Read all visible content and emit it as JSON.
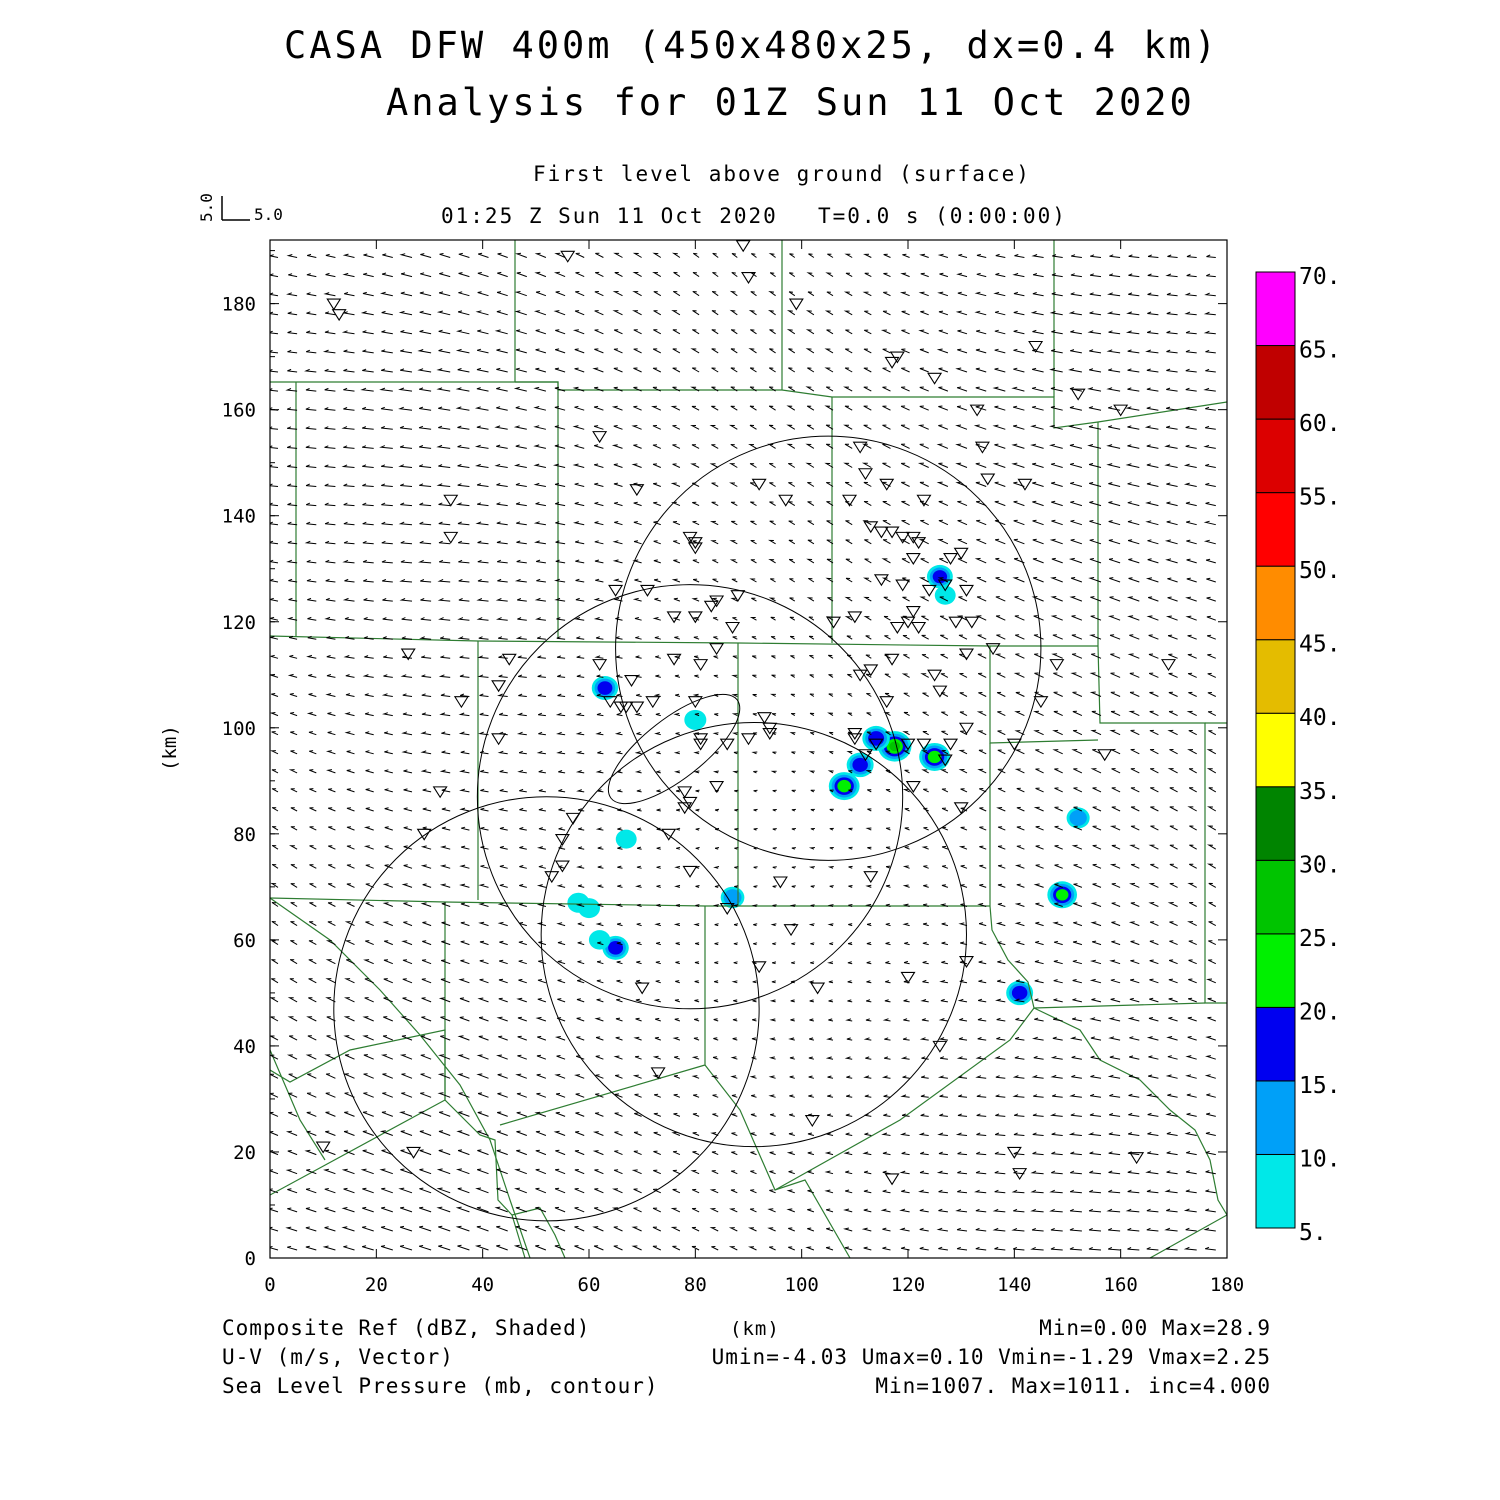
{
  "header": {
    "title_line1": "CASA DFW 400m (450x480x25, dx=0.4 km)",
    "title_line2": "Analysis for 01Z Sun 11 Oct 2020",
    "level": "First level above ground (surface)",
    "valid_time": "01:25 Z Sun 11 Oct 2020",
    "elapsed": "T=0.0 s (0:00:00)",
    "vector_ref_v": "5.0",
    "vector_ref_u": "5.0"
  },
  "axes": {
    "x_label": "(km)",
    "y_label": "(km)",
    "x_ticks": [
      "0",
      "20",
      "40",
      "60",
      "80",
      "100",
      "120",
      "140",
      "160",
      "180"
    ],
    "y_ticks": [
      "0",
      "20",
      "40",
      "60",
      "80",
      "100",
      "120",
      "140",
      "160",
      "180"
    ],
    "x_range": [
      0,
      180
    ],
    "y_range": [
      0,
      192
    ]
  },
  "colorbar": {
    "labels": [
      "5.",
      "10.",
      "15.",
      "20.",
      "25.",
      "30.",
      "35.",
      "40.",
      "45.",
      "50.",
      "55.",
      "60.",
      "65.",
      "70."
    ],
    "colors": [
      "#00e8e8",
      "#00a0f8",
      "#0000f0",
      "#00f000",
      "#00c400",
      "#008400",
      "#ffff00",
      "#e4bc00",
      "#ff8c00",
      "#ff0000",
      "#dc0000",
      "#c00000",
      "#ff00ff"
    ]
  },
  "footer": {
    "field1": "Composite Ref (dBZ, Shaded)",
    "field2": "U-V (m/s, Vector)",
    "field3": "Sea Level Pressure (mb, contour)",
    "units": "(km)",
    "stats1": "Min=0.00 Max=28.9",
    "stats2": "Umin=-4.03 Umax=0.10 Vmin=-1.29 Vmax=2.25",
    "stats3": "Min=1007. Max=1011. inc=4.000"
  },
  "map_data": {
    "radar_range_rings_km": [
      {
        "cx": 105,
        "cy": 115,
        "r": 40
      },
      {
        "cx": 79,
        "cy": 87,
        "r": 40
      },
      {
        "cx": 91,
        "cy": 61,
        "r": 40
      },
      {
        "cx": 52,
        "cy": 47,
        "r": 40
      }
    ],
    "echoes": [
      {
        "x": 117.5,
        "y": 96.5,
        "dbz": 28.9
      },
      {
        "x": 114,
        "y": 98,
        "dbz": 18
      },
      {
        "x": 125,
        "y": 94.5,
        "dbz": 24
      },
      {
        "x": 108,
        "y": 89,
        "dbz": 24
      },
      {
        "x": 111,
        "y": 93,
        "dbz": 17
      },
      {
        "x": 149,
        "y": 68.5,
        "dbz": 22
      },
      {
        "x": 141,
        "y": 50,
        "dbz": 17
      },
      {
        "x": 126,
        "y": 128.5,
        "dbz": 15
      },
      {
        "x": 63,
        "y": 107.5,
        "dbz": 16
      },
      {
        "x": 65,
        "y": 58.5,
        "dbz": 16
      },
      {
        "x": 87,
        "y": 68,
        "dbz": 11
      },
      {
        "x": 80,
        "y": 101.5,
        "dbz": 8
      },
      {
        "x": 152,
        "y": 83,
        "dbz": 10
      },
      {
        "x": 58,
        "y": 67,
        "dbz": 8
      },
      {
        "x": 60,
        "y": 66,
        "dbz": 8
      },
      {
        "x": 62,
        "y": 60,
        "dbz": 7
      },
      {
        "x": 67,
        "y": 79,
        "dbz": 6
      },
      {
        "x": 127,
        "y": 125,
        "dbz": 6
      }
    ],
    "stations_km": [
      [
        12,
        180
      ],
      [
        13,
        178
      ],
      [
        56,
        189
      ],
      [
        89,
        191
      ],
      [
        90,
        185
      ],
      [
        99,
        180
      ],
      [
        118,
        170
      ],
      [
        117,
        169
      ],
      [
        125,
        166
      ],
      [
        144,
        172
      ],
      [
        152,
        163
      ],
      [
        160,
        160
      ],
      [
        62,
        155
      ],
      [
        133,
        160
      ],
      [
        134,
        153
      ],
      [
        111,
        153
      ],
      [
        112,
        148
      ],
      [
        116,
        146
      ],
      [
        109,
        143
      ],
      [
        123,
        143
      ],
      [
        135,
        147
      ],
      [
        142,
        146
      ],
      [
        34,
        143
      ],
      [
        34,
        136
      ],
      [
        92,
        146
      ],
      [
        97,
        143
      ],
      [
        69,
        145
      ],
      [
        79,
        136
      ],
      [
        80,
        135
      ],
      [
        80,
        134
      ],
      [
        113,
        138
      ],
      [
        115,
        137
      ],
      [
        117,
        137
      ],
      [
        119,
        136
      ],
      [
        121,
        136
      ],
      [
        122,
        135
      ],
      [
        121,
        132
      ],
      [
        128,
        132
      ],
      [
        130,
        133
      ],
      [
        115,
        128
      ],
      [
        119,
        127
      ],
      [
        124,
        126
      ],
      [
        127,
        127
      ],
      [
        131,
        126
      ],
      [
        65,
        126
      ],
      [
        71,
        126
      ],
      [
        88,
        125
      ],
      [
        84,
        124
      ],
      [
        83,
        123
      ],
      [
        80,
        121
      ],
      [
        76,
        121
      ],
      [
        87,
        119
      ],
      [
        110,
        121
      ],
      [
        106,
        120
      ],
      [
        121,
        122
      ],
      [
        120,
        120
      ],
      [
        118,
        119
      ],
      [
        122,
        119
      ],
      [
        129,
        120
      ],
      [
        132,
        120
      ],
      [
        84,
        115
      ],
      [
        131,
        114
      ],
      [
        136,
        115
      ],
      [
        26,
        114
      ],
      [
        45,
        113
      ],
      [
        62,
        112
      ],
      [
        68,
        109
      ],
      [
        76,
        113
      ],
      [
        81,
        112
      ],
      [
        117,
        113
      ],
      [
        113,
        111
      ],
      [
        111,
        110
      ],
      [
        125,
        110
      ],
      [
        126,
        107
      ],
      [
        148,
        112
      ],
      [
        169,
        112
      ],
      [
        36,
        105
      ],
      [
        43,
        108
      ],
      [
        64,
        105
      ],
      [
        66,
        104
      ],
      [
        67,
        104
      ],
      [
        69,
        104
      ],
      [
        72,
        105
      ],
      [
        80,
        105
      ],
      [
        116,
        105
      ],
      [
        145,
        105
      ],
      [
        93,
        102
      ],
      [
        94,
        100
      ],
      [
        94,
        99
      ],
      [
        110,
        99
      ],
      [
        131,
        100
      ],
      [
        110,
        98
      ],
      [
        114,
        97
      ],
      [
        120,
        97
      ],
      [
        123,
        97
      ],
      [
        128,
        97
      ],
      [
        90,
        98
      ],
      [
        86,
        97
      ],
      [
        81,
        98
      ],
      [
        81,
        97
      ],
      [
        43,
        98
      ],
      [
        140,
        97
      ],
      [
        157,
        95
      ],
      [
        112,
        95
      ],
      [
        127,
        94
      ],
      [
        32,
        88
      ],
      [
        78,
        88
      ],
      [
        84,
        89
      ],
      [
        79,
        86
      ],
      [
        78,
        85
      ],
      [
        121,
        89
      ],
      [
        130,
        85
      ],
      [
        29,
        80
      ],
      [
        55,
        79
      ],
      [
        57,
        83
      ],
      [
        75,
        80
      ],
      [
        86,
        66
      ],
      [
        79,
        73
      ],
      [
        55,
        74
      ],
      [
        53,
        72
      ],
      [
        96,
        71
      ],
      [
        113,
        72
      ],
      [
        98,
        62
      ],
      [
        92,
        55
      ],
      [
        120,
        53
      ],
      [
        131,
        56
      ],
      [
        70,
        51
      ],
      [
        103,
        51
      ],
      [
        126,
        40
      ],
      [
        73,
        35
      ],
      [
        102,
        26
      ],
      [
        10,
        21
      ],
      [
        27,
        20
      ],
      [
        140,
        20
      ],
      [
        141,
        16
      ],
      [
        117,
        15
      ],
      [
        163,
        19
      ]
    ]
  }
}
